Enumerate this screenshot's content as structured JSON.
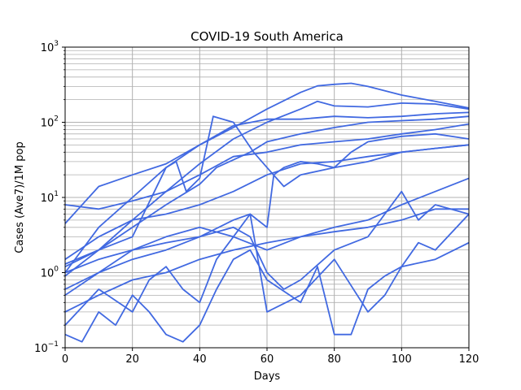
{
  "chart_data": {
    "type": "line",
    "title": "COVID-19  South America",
    "xlabel": "Days",
    "ylabel": "Cases (Ave7)/1M pop",
    "xlim": [
      0,
      120
    ],
    "ylim": [
      0.1,
      1000
    ],
    "yscale": "log",
    "grid": true,
    "x_ticks": [
      "0",
      "20",
      "40",
      "60",
      "80",
      "100",
      "120"
    ],
    "y_ticks": [
      {
        "base": "10",
        "exp": "−1"
      },
      {
        "base": "10",
        "exp": "0"
      },
      {
        "base": "10",
        "exp": "1"
      },
      {
        "base": "10",
        "exp": "2"
      },
      {
        "base": "10",
        "exp": "3"
      }
    ],
    "line_color": "#4169e1",
    "series": [
      {
        "x": [
          0,
          10,
          20,
          30,
          40,
          50,
          60,
          70,
          75,
          80,
          85,
          90,
          100,
          110,
          120
        ],
        "values": [
          4.5,
          14,
          20,
          28,
          50,
          85,
          150,
          250,
          305,
          320,
          330,
          300,
          230,
          190,
          155
        ]
      },
      {
        "x": [
          0,
          10,
          20,
          30,
          40,
          50,
          60,
          70,
          75,
          80,
          90,
          100,
          110,
          120
        ],
        "values": [
          1.3,
          2,
          5,
          12,
          28,
          60,
          100,
          150,
          190,
          165,
          160,
          180,
          175,
          150
        ]
      },
      {
        "x": [
          0,
          10,
          20,
          30,
          40,
          50,
          60,
          70,
          80,
          90,
          100,
          110,
          120
        ],
        "values": [
          1.0,
          4,
          10,
          25,
          50,
          90,
          110,
          110,
          120,
          115,
          120,
          130,
          135
        ]
      },
      {
        "x": [
          0,
          10,
          20,
          30,
          40,
          45,
          55,
          60,
          70,
          80,
          90,
          100,
          110,
          120
        ],
        "values": [
          0.9,
          2,
          4,
          8,
          15,
          25,
          40,
          55,
          70,
          85,
          100,
          105,
          110,
          120
        ]
      },
      {
        "x": [
          0,
          10,
          20,
          30,
          40,
          50,
          60,
          70,
          80,
          90,
          100,
          110,
          120
        ],
        "values": [
          8,
          7,
          9,
          12,
          20,
          35,
          40,
          50,
          55,
          60,
          70,
          80,
          95
        ]
      },
      {
        "x": [
          0,
          10,
          20,
          30,
          33,
          36,
          40,
          44,
          50,
          56,
          60,
          65,
          70,
          80,
          85,
          90,
          100,
          110,
          120
        ],
        "values": [
          1.2,
          2,
          3,
          25,
          30,
          12,
          18,
          120,
          100,
          40,
          25,
          14,
          20,
          25,
          40,
          55,
          65,
          70,
          60
        ]
      },
      {
        "x": [
          0,
          10,
          20,
          30,
          40,
          50,
          60,
          70,
          80,
          90,
          100,
          110,
          120
        ],
        "values": [
          1.5,
          3,
          5,
          6,
          8,
          12,
          20,
          28,
          30,
          35,
          40,
          45,
          50
        ]
      },
      {
        "x": [
          0,
          10,
          20,
          30,
          40,
          50,
          55,
          60,
          62,
          65,
          70,
          75,
          80,
          90,
          100,
          110,
          120
        ],
        "values": [
          1.0,
          1.5,
          2,
          2.5,
          3,
          5,
          6,
          4,
          20,
          25,
          30,
          28,
          25,
          30,
          40,
          45,
          50
        ]
      },
      {
        "x": [
          0,
          10,
          20,
          30,
          40,
          50,
          60,
          70,
          80,
          90,
          100,
          110,
          120
        ],
        "values": [
          0.6,
          1,
          2,
          3,
          4,
          3,
          2,
          3,
          4,
          5,
          8,
          12,
          18
        ]
      },
      {
        "x": [
          0,
          10,
          20,
          30,
          40,
          50,
          55,
          60,
          65,
          70,
          80,
          90,
          100,
          105,
          110,
          120
        ],
        "values": [
          0.5,
          1,
          1.5,
          2,
          3,
          4,
          3,
          1,
          0.6,
          0.8,
          2,
          3,
          12,
          5,
          8,
          6
        ]
      },
      {
        "x": [
          0,
          10,
          20,
          30,
          40,
          50,
          60,
          70,
          80,
          90,
          100,
          110,
          120
        ],
        "values": [
          0.3,
          0.5,
          0.8,
          1,
          1.5,
          2,
          2.5,
          3,
          3.5,
          4,
          5,
          7,
          7
        ]
      },
      {
        "x": [
          0,
          10,
          20,
          25,
          30,
          35,
          40,
          45,
          50,
          55,
          60,
          70,
          80,
          90,
          95,
          100,
          105,
          110,
          120
        ],
        "values": [
          0.2,
          0.6,
          0.3,
          0.8,
          1.2,
          0.6,
          0.4,
          1.5,
          3,
          6,
          0.3,
          0.5,
          1.5,
          0.3,
          0.5,
          1.2,
          2.5,
          2.0,
          6
        ]
      },
      {
        "x": [
          0,
          5,
          10,
          15,
          20,
          25,
          30,
          35,
          40,
          45,
          50,
          55,
          60,
          70,
          75,
          80,
          85,
          90,
          95,
          100,
          110,
          120
        ],
        "values": [
          0.15,
          0.12,
          0.3,
          0.2,
          0.5,
          0.3,
          0.15,
          0.12,
          0.2,
          0.6,
          1.5,
          2,
          0.8,
          0.4,
          1.2,
          0.15,
          0.15,
          0.6,
          0.9,
          1.2,
          1.5,
          2.5
        ]
      }
    ]
  }
}
